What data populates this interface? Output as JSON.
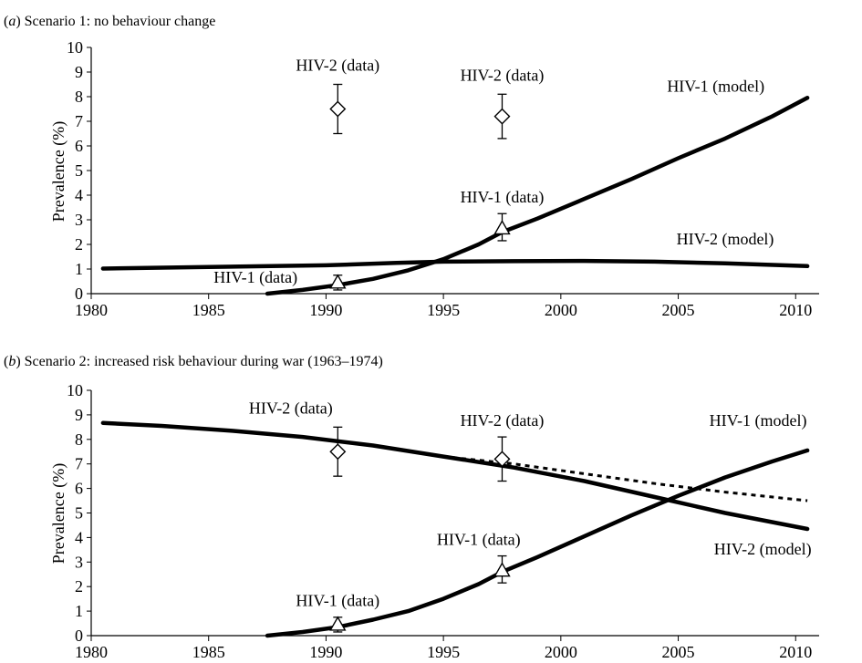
{
  "chart_data": [
    {
      "type": "line",
      "panel_label": "a",
      "title": "Scenario 1: no behaviour change",
      "xlabel": "",
      "ylabel": "Prevalence (%)",
      "xlim": [
        1980,
        2011
      ],
      "ylim": [
        0,
        10
      ],
      "x_ticks": [
        1980,
        1985,
        1990,
        1995,
        2000,
        2005,
        2010
      ],
      "y_ticks": [
        0,
        1,
        2,
        3,
        4,
        5,
        6,
        7,
        8,
        9,
        10
      ],
      "grid": false,
      "series": [
        {
          "name": "HIV-1 (model)",
          "style": "solid",
          "x": [
            1987.5,
            1989,
            1990.5,
            1992,
            1993.5,
            1995,
            1996.5,
            1997.5,
            1999,
            2001,
            2003,
            2005,
            2007,
            2009,
            2010.5
          ],
          "values": [
            0,
            0.15,
            0.35,
            0.6,
            0.95,
            1.4,
            2.0,
            2.5,
            3.05,
            3.85,
            4.65,
            5.5,
            6.3,
            7.2,
            7.95
          ]
        },
        {
          "name": "HIV-2 (model)",
          "style": "solid",
          "x": [
            1980.5,
            1985,
            1990,
            1993,
            1995,
            1998,
            2001,
            2004,
            2007,
            2010.5
          ],
          "values": [
            1.02,
            1.08,
            1.15,
            1.25,
            1.3,
            1.32,
            1.33,
            1.3,
            1.23,
            1.12
          ]
        }
      ],
      "data_points": [
        {
          "name": "HIV-2 (data)",
          "marker": "diamond",
          "x": 1990.5,
          "y": 7.5,
          "low": 6.5,
          "high": 8.5
        },
        {
          "name": "HIV-2 (data)",
          "marker": "diamond",
          "x": 1997.5,
          "y": 7.2,
          "low": 6.3,
          "high": 8.1
        },
        {
          "name": "HIV-1 (data)",
          "marker": "triangle",
          "x": 1990.5,
          "y": 0.45,
          "low": 0.15,
          "high": 0.75
        },
        {
          "name": "HIV-1 (data)",
          "marker": "triangle",
          "x": 1997.5,
          "y": 2.65,
          "low": 2.15,
          "high": 3.25
        }
      ],
      "annotations": [
        {
          "text": "HIV-2 (data)",
          "x": 1990.5,
          "y": 9.05
        },
        {
          "text": "HIV-2 (data)",
          "x": 1997.5,
          "y": 8.65
        },
        {
          "text": "HIV-1 (model)",
          "x": 2006.6,
          "y": 8.2
        },
        {
          "text": "HIV-1 (data)",
          "x": 1997.5,
          "y": 3.7
        },
        {
          "text": "HIV-2 (model)",
          "x": 2007.0,
          "y": 2.0
        },
        {
          "text": "HIV-1 (data)",
          "x": 1987.0,
          "y": 0.45
        }
      ]
    },
    {
      "type": "line",
      "panel_label": "b",
      "title": "Scenario 2: increased risk behaviour during war (1963–1974)",
      "xlabel": "",
      "ylabel": "Prevalence (%)",
      "xlim": [
        1980,
        2011
      ],
      "ylim": [
        0,
        10
      ],
      "x_ticks": [
        1980,
        1985,
        1990,
        1995,
        2000,
        2005,
        2010
      ],
      "y_ticks": [
        0,
        1,
        2,
        3,
        4,
        5,
        6,
        7,
        8,
        9,
        10
      ],
      "grid": false,
      "series": [
        {
          "name": "HIV-2 (model)",
          "style": "solid",
          "x": [
            1980.5,
            1983,
            1986,
            1989,
            1992,
            1995,
            1998,
            2001,
            2004,
            2007,
            2010.5
          ],
          "values": [
            8.67,
            8.55,
            8.35,
            8.1,
            7.75,
            7.3,
            6.85,
            6.3,
            5.65,
            5.0,
            4.35
          ]
        },
        {
          "name": "",
          "style": "dashed",
          "x": [
            1995,
            1998,
            2001,
            2004,
            2007,
            2010.5
          ],
          "values": [
            7.3,
            7.0,
            6.6,
            6.2,
            5.85,
            5.5
          ]
        },
        {
          "name": "HIV-1 (model)",
          "style": "solid",
          "x": [
            1987.5,
            1989,
            1990.5,
            1992,
            1993.5,
            1995,
            1996.5,
            1997.5,
            1999,
            2001,
            2003,
            2005,
            2007,
            2009,
            2010.5
          ],
          "values": [
            0,
            0.15,
            0.35,
            0.65,
            1.0,
            1.5,
            2.1,
            2.6,
            3.2,
            4.05,
            4.9,
            5.7,
            6.45,
            7.1,
            7.55
          ]
        }
      ],
      "data_points": [
        {
          "name": "HIV-2 (data)",
          "marker": "diamond",
          "x": 1990.5,
          "y": 7.5,
          "low": 6.5,
          "high": 8.5
        },
        {
          "name": "HIV-2 (data)",
          "marker": "diamond",
          "x": 1997.5,
          "y": 7.2,
          "low": 6.3,
          "high": 8.1
        },
        {
          "name": "HIV-1 (data)",
          "marker": "triangle",
          "x": 1990.5,
          "y": 0.45,
          "low": 0.15,
          "high": 0.75
        },
        {
          "name": "HIV-1 (data)",
          "marker": "triangle",
          "x": 1997.5,
          "y": 2.65,
          "low": 2.15,
          "high": 3.25
        }
      ],
      "annotations": [
        {
          "text": "HIV-2 (data)",
          "x": 1988.5,
          "y": 9.05
        },
        {
          "text": "HIV-2 (data)",
          "x": 1997.5,
          "y": 8.55
        },
        {
          "text": "HIV-1 (model)",
          "x": 2008.4,
          "y": 8.55
        },
        {
          "text": "HIV-1 (data)",
          "x": 1996.5,
          "y": 3.7
        },
        {
          "text": "HIV-2 (model)",
          "x": 2008.6,
          "y": 3.3
        },
        {
          "text": "HIV-1 (data)",
          "x": 1990.5,
          "y": 1.2
        }
      ]
    }
  ]
}
